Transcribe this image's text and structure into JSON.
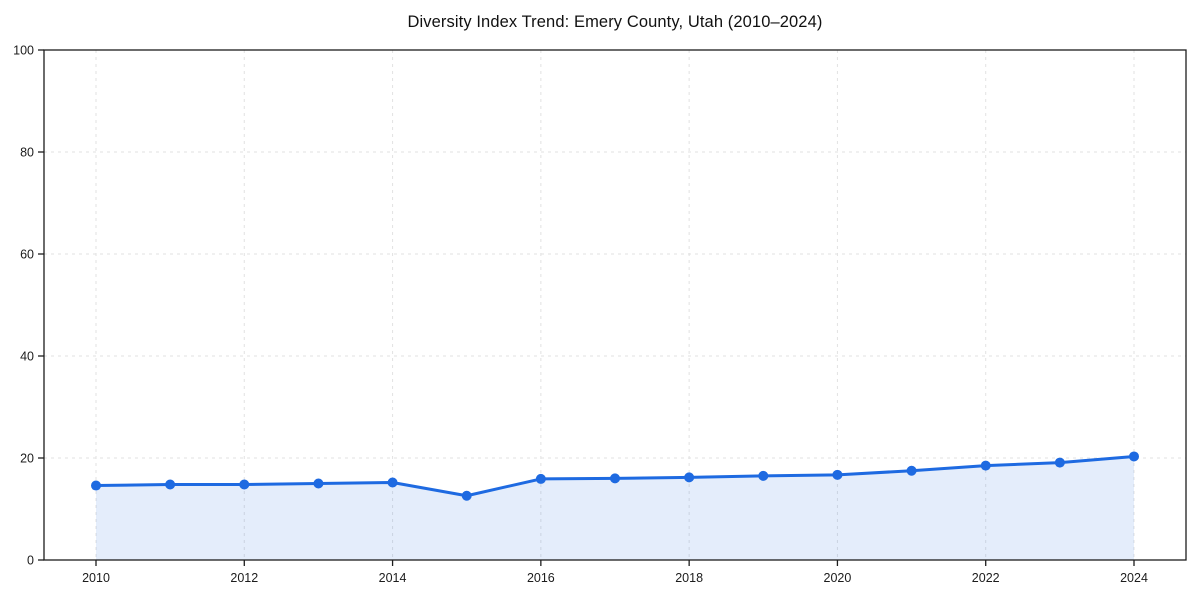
{
  "title": "Diversity Index Trend: Emery County, Utah (2010–2024)",
  "chart_data": {
    "type": "line",
    "title": "Diversity Index Trend: Emery County, Utah (2010–2024)",
    "x": [
      2010,
      2011,
      2012,
      2013,
      2014,
      2015,
      2016,
      2017,
      2018,
      2019,
      2020,
      2021,
      2022,
      2023,
      2024
    ],
    "series": [
      {
        "name": "Diversity Index",
        "values": [
          14.6,
          14.8,
          14.8,
          15.0,
          15.2,
          12.6,
          15.9,
          16.0,
          16.2,
          16.5,
          16.7,
          17.5,
          18.5,
          19.1,
          20.3
        ]
      }
    ],
    "xlabel": "",
    "ylabel": "",
    "ylim": [
      0,
      100
    ],
    "yticks": [
      0,
      20,
      40,
      60,
      80,
      100
    ],
    "xticks": [
      2010,
      2012,
      2014,
      2016,
      2018,
      2020,
      2022,
      2024
    ],
    "grid": true,
    "legend": "none",
    "area_fill": true,
    "colors": {
      "line": "#1e6ae1",
      "marker": "#1e6ae1",
      "fill": "rgba(30,106,225,0.12)",
      "gridline": "#e2e2e2",
      "spine": "#1c1c1c",
      "tick_label": "#1c1c1c",
      "background": "#ffffff"
    }
  }
}
